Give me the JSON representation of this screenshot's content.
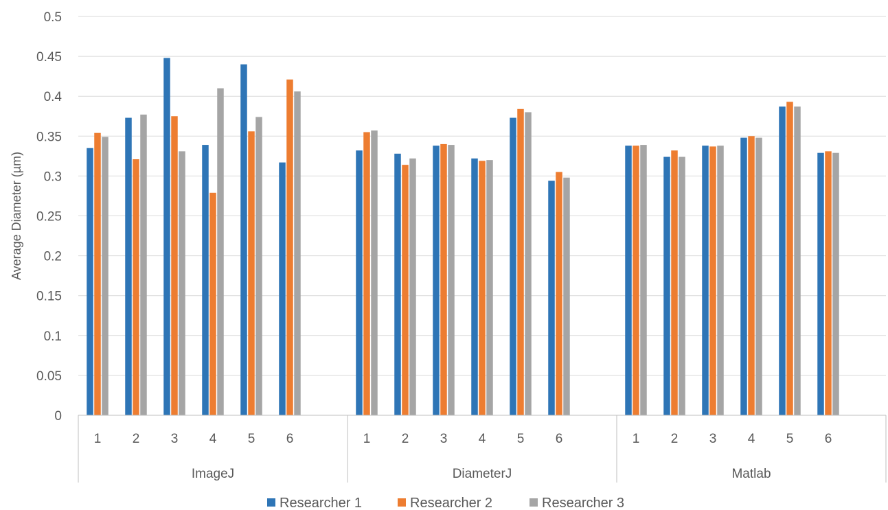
{
  "chart_data": {
    "type": "bar",
    "title": "",
    "xlabel": "",
    "ylabel": "Average Diameter (µm)",
    "ylim": [
      0,
      0.5
    ],
    "yticks": [
      "0",
      "0.05",
      "0.1",
      "0.15",
      "0.2",
      "0.25",
      "0.3",
      "0.35",
      "0.4",
      "0.45",
      "0.5"
    ],
    "grid": true,
    "legend_position": "bottom",
    "groups": [
      {
        "label": "ImageJ",
        "categories": [
          "1",
          "2",
          "3",
          "4",
          "5",
          "6"
        ]
      },
      {
        "label": "DiameterJ",
        "categories": [
          "1",
          "2",
          "3",
          "4",
          "5",
          "6"
        ]
      },
      {
        "label": "Matlab",
        "categories": [
          "1",
          "2",
          "3",
          "4",
          "5",
          "6"
        ]
      }
    ],
    "series": [
      {
        "name": "Researcher 1",
        "color": "#2E75B6",
        "values": [
          0.335,
          0.373,
          0.448,
          0.339,
          0.44,
          0.317,
          0.332,
          0.328,
          0.338,
          0.322,
          0.373,
          0.294,
          0.338,
          0.324,
          0.338,
          0.348,
          0.387,
          0.329
        ]
      },
      {
        "name": "Researcher 2",
        "color": "#ED7D31",
        "values": [
          0.354,
          0.321,
          0.375,
          0.279,
          0.356,
          0.421,
          0.355,
          0.314,
          0.34,
          0.319,
          0.384,
          0.305,
          0.338,
          0.332,
          0.337,
          0.35,
          0.393,
          0.331
        ]
      },
      {
        "name": "Researcher 3",
        "color": "#A5A5A5",
        "values": [
          0.349,
          0.377,
          0.331,
          0.41,
          0.374,
          0.406,
          0.357,
          0.322,
          0.339,
          0.32,
          0.38,
          0.298,
          0.339,
          0.324,
          0.338,
          0.348,
          0.387,
          0.329
        ]
      }
    ]
  }
}
